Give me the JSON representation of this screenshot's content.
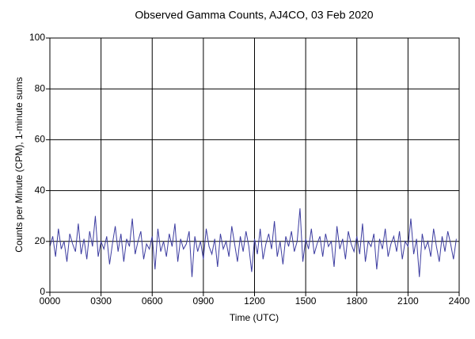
{
  "chart_data": {
    "type": "line",
    "title": "Observed Gamma Counts, AJ4CO, 03 Feb 2020",
    "x_label": "Time (UTC)",
    "y_label": "Counts per Minute (CPM), 1-minute sums",
    "color": "#3c3ca0",
    "grid": true,
    "xlim": [
      0,
      1440
    ],
    "xticks": [
      {
        "value": 0,
        "label": "0000"
      },
      {
        "value": 180,
        "label": "0300"
      },
      {
        "value": 360,
        "label": "0600"
      },
      {
        "value": 540,
        "label": "0900"
      },
      {
        "value": 720,
        "label": "1200"
      },
      {
        "value": 900,
        "label": "1500"
      },
      {
        "value": 1080,
        "label": "1800"
      },
      {
        "value": 1260,
        "label": "2100"
      },
      {
        "value": 1440,
        "label": "2400"
      }
    ],
    "ylim": [
      0,
      100
    ],
    "yticks": [
      0,
      20,
      40,
      60,
      80,
      100
    ],
    "x": [
      0,
      10,
      20,
      30,
      40,
      50,
      60,
      70,
      80,
      90,
      100,
      110,
      120,
      130,
      140,
      150,
      160,
      170,
      180,
      190,
      200,
      210,
      220,
      230,
      240,
      250,
      260,
      270,
      280,
      290,
      300,
      310,
      320,
      330,
      340,
      350,
      360,
      370,
      380,
      390,
      400,
      410,
      420,
      430,
      440,
      450,
      460,
      470,
      480,
      490,
      500,
      510,
      520,
      530,
      540,
      550,
      560,
      570,
      580,
      590,
      600,
      610,
      620,
      630,
      640,
      650,
      660,
      670,
      680,
      690,
      700,
      710,
      720,
      730,
      740,
      750,
      760,
      770,
      780,
      790,
      800,
      810,
      820,
      830,
      840,
      850,
      860,
      870,
      880,
      890,
      900,
      910,
      920,
      930,
      940,
      950,
      960,
      970,
      980,
      990,
      1000,
      1010,
      1020,
      1030,
      1040,
      1050,
      1060,
      1070,
      1080,
      1090,
      1100,
      1110,
      1120,
      1130,
      1140,
      1150,
      1160,
      1170,
      1180,
      1190,
      1200,
      1210,
      1220,
      1230,
      1240,
      1250,
      1260,
      1270,
      1280,
      1290,
      1300,
      1310,
      1320,
      1330,
      1340,
      1350,
      1360,
      1370,
      1380,
      1390,
      1400,
      1410,
      1420,
      1430
    ],
    "values": [
      18,
      22,
      14,
      25,
      17,
      20,
      12,
      23,
      19,
      16,
      27,
      15,
      21,
      13,
      24,
      18,
      30,
      14,
      20,
      17,
      22,
      11,
      19,
      26,
      16,
      23,
      12,
      21,
      18,
      29,
      15,
      20,
      24,
      13,
      19,
      17,
      22,
      9,
      25,
      16,
      20,
      14,
      23,
      18,
      27,
      12,
      21,
      17,
      19,
      24,
      6,
      22,
      16,
      20,
      13,
      25,
      18,
      15,
      21,
      10,
      23,
      17,
      20,
      14,
      26,
      19,
      12,
      22,
      16,
      24,
      18,
      8,
      21,
      15,
      25,
      13,
      19,
      23,
      17,
      28,
      14,
      20,
      11,
      22,
      18,
      24,
      16,
      20,
      33,
      12,
      21,
      17,
      25,
      15,
      19,
      22,
      14,
      23,
      18,
      20,
      10,
      26,
      17,
      21,
      13,
      24,
      19,
      16,
      22,
      15,
      27,
      12,
      20,
      18,
      23,
      9,
      21,
      17,
      25,
      14,
      19,
      22,
      16,
      24,
      13,
      20,
      18,
      29,
      15,
      21,
      6,
      23,
      17,
      20,
      14,
      25,
      18,
      12,
      22,
      16,
      24,
      19,
      13,
      21
    ]
  }
}
